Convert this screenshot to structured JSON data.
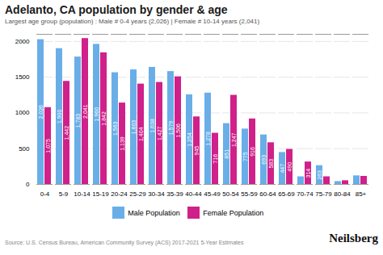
{
  "chart_data": {
    "type": "bar",
    "title": "Adelanto, CA population by gender & age",
    "subtitle": "Largest age group (population) : Male # 0-4 years (2,026) | Female # 10-14 years (2,041)",
    "categories": [
      "0-4",
      "5-9",
      "10-14",
      "15-19",
      "20-24",
      "25-29",
      "30-34",
      "35-39",
      "40-44",
      "45-49",
      "50-54",
      "55-59",
      "60-64",
      "65-69",
      "70-74",
      "75-79",
      "80-84",
      "85+"
    ],
    "series": [
      {
        "name": "Male Population",
        "color": "#6aaee8",
        "values": [
          2026,
          1900,
          1783,
          1960,
          1563,
          1603,
          1638,
          1579,
          1254,
          1278,
          851,
          775,
          693,
          447,
          107,
          263,
          40,
          120
        ],
        "value_labels": [
          "2,026",
          "1,900",
          "1,783",
          "1,960",
          "1,563",
          "1,603",
          "1,638",
          "1,579",
          "1,254",
          "1,278",
          "851",
          "775",
          "693",
          "447",
          null,
          "263",
          null,
          null
        ]
      },
      {
        "name": "Female Population",
        "color": "#D0208A",
        "values": [
          1075,
          1442,
          2041,
          1842,
          1139,
          1404,
          1427,
          1506,
          945,
          716,
          1247,
          916,
          583,
          490,
          314,
          107,
          52,
          113
        ],
        "value_labels": [
          "1,075",
          "1,442",
          "2,041",
          "1,842",
          "1,139",
          "1,404",
          "1,427",
          "1,506",
          "945",
          "716",
          "1,247",
          "916",
          "583",
          "490",
          "314",
          null,
          null,
          null
        ]
      }
    ],
    "ylim": [
      0,
      2100
    ],
    "yticks": [
      0,
      500,
      1000,
      1500,
      2000
    ],
    "grid": true,
    "legend": "lower center",
    "data_labels": true,
    "annotations": [
      "Source: U.S. Census Bureau, American Community Survey (ACS) 2017-2021 5-Year Estimates",
      "Neilsberg"
    ]
  }
}
